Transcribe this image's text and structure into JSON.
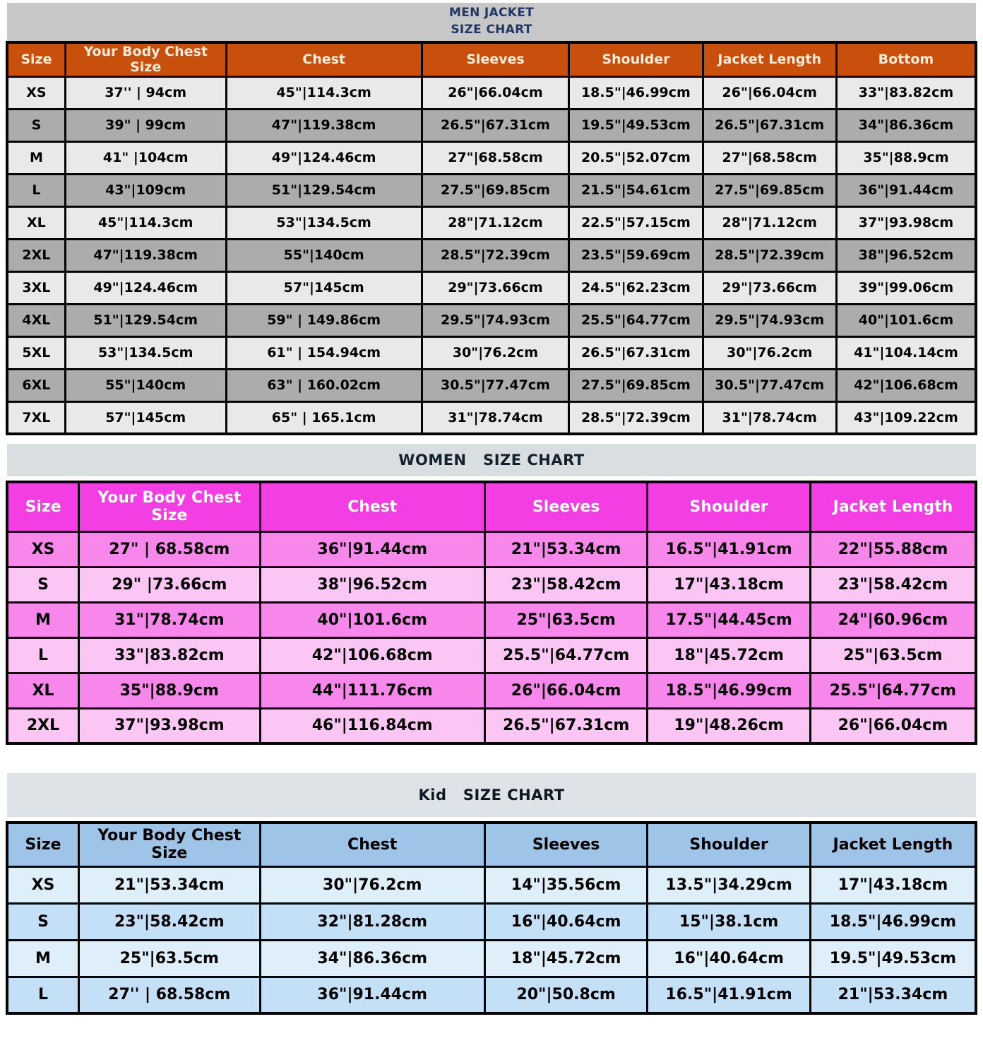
{
  "colors": {
    "border": "#050505",
    "men_strip_bg": "#C7C7C7",
    "men_strip_fg": "#1F3864",
    "men_header_bg": "#C94F0C",
    "men_header_fg": "#FFEDD9",
    "men_row_a": "#E9E9E9",
    "men_row_b": "#ACACAC",
    "women_strip_bg": "#D9DEE1",
    "women_strip_fg": "#15202E",
    "women_header_bg": "#F23EE2",
    "women_header_fg": "#FFFFFF",
    "women_row_a": "#F887EC",
    "women_row_b": "#FBC6F4",
    "kid_strip_bg": "#DDE3E6",
    "kid_strip_fg": "#0E1722",
    "kid_header_bg": "#9EC4E8",
    "kid_header_fg": "#000000",
    "kid_row_a": "#DEEFFA",
    "kid_row_b": "#C4E0F6"
  },
  "chart_data": [
    {
      "type": "table",
      "title": "MEN JACKET\nSIZE CHART",
      "columns": [
        "Size",
        "Your Body Chest Size",
        "Chest",
        "Sleeves",
        "Shoulder",
        "Jacket Length",
        "Bottom"
      ],
      "rows": [
        [
          "XS",
          "37'' | 94cm",
          "45\"|114.3cm",
          "26\"|66.04cm",
          "18.5\"|46.99cm",
          "26\"|66.04cm",
          "33\"|83.82cm"
        ],
        [
          "S",
          "39\" | 99cm",
          "47\"|119.38cm",
          "26.5\"|67.31cm",
          "19.5\"|49.53cm",
          "26.5\"|67.31cm",
          "34\"|86.36cm"
        ],
        [
          "M",
          "41\" |104cm",
          "49\"|124.46cm",
          "27\"|68.58cm",
          "20.5\"|52.07cm",
          "27\"|68.58cm",
          "35\"|88.9cm"
        ],
        [
          "L",
          "43\"|109cm",
          "51\"|129.54cm",
          "27.5\"|69.85cm",
          "21.5\"|54.61cm",
          "27.5\"|69.85cm",
          "36\"|91.44cm"
        ],
        [
          "XL",
          "45\"|114.3cm",
          "53\"|134.5cm",
          "28\"|71.12cm",
          "22.5\"|57.15cm",
          "28\"|71.12cm",
          "37\"|93.98cm"
        ],
        [
          "2XL",
          "47\"|119.38cm",
          "55\"|140cm",
          "28.5\"|72.39cm",
          "23.5\"|59.69cm",
          "28.5\"|72.39cm",
          "38\"|96.52cm"
        ],
        [
          "3XL",
          "49\"|124.46cm",
          "57\"|145cm",
          "29\"|73.66cm",
          "24.5\"|62.23cm",
          "29\"|73.66cm",
          "39\"|99.06cm"
        ],
        [
          "4XL",
          "51\"|129.54cm",
          "59\" | 149.86cm",
          "29.5\"|74.93cm",
          "25.5\"|64.77cm",
          "29.5\"|74.93cm",
          "40\"|101.6cm"
        ],
        [
          "5XL",
          "53\"|134.5cm",
          "61\" | 154.94cm",
          "30\"|76.2cm",
          "26.5\"|67.31cm",
          "30\"|76.2cm",
          "41\"|104.14cm"
        ],
        [
          "6XL",
          "55\"|140cm",
          "63\" | 160.02cm",
          "30.5\"|77.47cm",
          "27.5\"|69.85cm",
          "30.5\"|77.47cm",
          "42\"|106.68cm"
        ],
        [
          "7XL",
          "57\"|145cm",
          "65\" | 165.1cm",
          "31\"|78.74cm",
          "28.5\"|72.39cm",
          "31\"|78.74cm",
          "43\"|109.22cm"
        ]
      ]
    },
    {
      "type": "table",
      "title": "WOMEN   SIZE CHART",
      "columns": [
        "Size",
        "Your Body Chest Size",
        "Chest",
        "Sleeves",
        "Shoulder",
        "Jacket Length"
      ],
      "rows": [
        [
          "XS",
          "27\" | 68.58cm",
          "36\"|91.44cm",
          "21\"|53.34cm",
          "16.5\"|41.91cm",
          "22\"|55.88cm"
        ],
        [
          "S",
          "29\" |73.66cm",
          "38\"|96.52cm",
          "23\"|58.42cm",
          "17\"|43.18cm",
          "23\"|58.42cm"
        ],
        [
          "M",
          "31\"|78.74cm",
          "40\"|101.6cm",
          "25\"|63.5cm",
          "17.5\"|44.45cm",
          "24\"|60.96cm"
        ],
        [
          "L",
          "33\"|83.82cm",
          "42\"|106.68cm",
          "25.5\"|64.77cm",
          "18\"|45.72cm",
          "25\"|63.5cm"
        ],
        [
          "XL",
          "35\"|88.9cm",
          "44\"|111.76cm",
          "26\"|66.04cm",
          "18.5\"|46.99cm",
          "25.5\"|64.77cm"
        ],
        [
          "2XL",
          "37\"|93.98cm",
          "46\"|116.84cm",
          "26.5\"|67.31cm",
          "19\"|48.26cm",
          "26\"|66.04cm"
        ]
      ]
    },
    {
      "type": "table",
      "title": "Kid   SIZE CHART",
      "columns": [
        "Size",
        "Your Body Chest Size",
        "Chest",
        "Sleeves",
        "Shoulder",
        "Jacket Length"
      ],
      "rows": [
        [
          "XS",
          "21\"|53.34cm",
          "30\"|76.2cm",
          "14\"|35.56cm",
          "13.5\"|34.29cm",
          "17\"|43.18cm"
        ],
        [
          "S",
          "23\"|58.42cm",
          "32\"|81.28cm",
          "16\"|40.64cm",
          "15\"|38.1cm",
          "18.5\"|46.99cm"
        ],
        [
          "M",
          "25\"|63.5cm",
          "34\"|86.36cm",
          "18\"|45.72cm",
          "16\"|40.64cm",
          "19.5\"|49.53cm"
        ],
        [
          "L",
          "27'' | 68.58cm",
          "36\"|91.44cm",
          "20\"|50.8cm",
          "16.5\"|41.91cm",
          "21\"|53.34cm"
        ]
      ]
    }
  ]
}
